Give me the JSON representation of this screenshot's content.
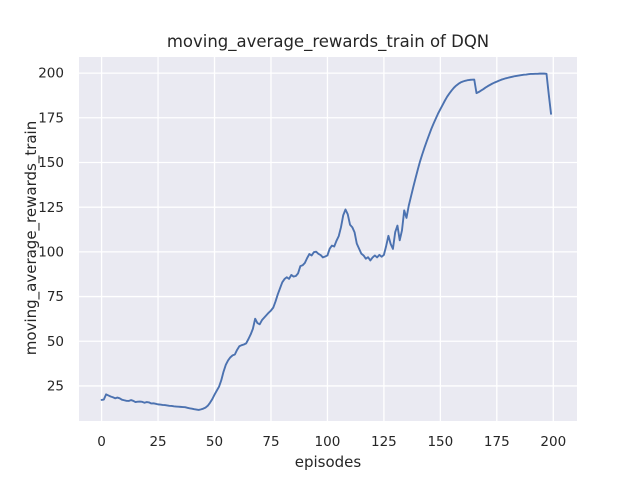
{
  "chart_data": {
    "type": "line",
    "title": "moving_average_rewards_train of DQN",
    "xlabel": "episodes",
    "ylabel": "moving_average_rewards_train",
    "xticks": [
      0,
      25,
      50,
      75,
      100,
      125,
      150,
      175,
      200
    ],
    "yticks": [
      25,
      50,
      75,
      100,
      125,
      150,
      175,
      200
    ],
    "xlim": [
      -10,
      210.5
    ],
    "ylim": [
      5.4,
      209
    ],
    "grid": true,
    "legend": false,
    "colors": {
      "line": "#4C72B0",
      "plot_background": "#EAEAF2",
      "grid": "#FFFFFF",
      "figure_background": "#FFFFFF",
      "text": "#262626"
    },
    "series": [
      {
        "name": "moving_average_rewards_train",
        "points": [
          [
            0,
            17.2
          ],
          [
            1,
            17.4
          ],
          [
            2,
            20.3
          ],
          [
            3,
            19.7
          ],
          [
            4,
            19.1
          ],
          [
            5,
            18.7
          ],
          [
            6,
            18.1
          ],
          [
            7,
            18.5
          ],
          [
            8,
            18.1
          ],
          [
            9,
            17.3
          ],
          [
            10,
            17.0
          ],
          [
            11,
            16.7
          ],
          [
            12,
            16.6
          ],
          [
            13,
            17.1
          ],
          [
            14,
            16.7
          ],
          [
            15,
            16.0
          ],
          [
            16,
            16.2
          ],
          [
            17,
            16.3
          ],
          [
            18,
            16.1
          ],
          [
            19,
            15.6
          ],
          [
            20,
            16.0
          ],
          [
            21,
            15.8
          ],
          [
            22,
            15.2
          ],
          [
            23,
            15.3
          ],
          [
            24,
            15.0
          ],
          [
            25,
            14.7
          ],
          [
            26,
            14.6
          ],
          [
            27,
            14.4
          ],
          [
            28,
            14.3
          ],
          [
            29,
            14.1
          ],
          [
            30,
            13.9
          ],
          [
            31,
            13.8
          ],
          [
            32,
            13.6
          ],
          [
            33,
            13.5
          ],
          [
            34,
            13.4
          ],
          [
            35,
            13.3
          ],
          [
            36,
            13.2
          ],
          [
            37,
            13.1
          ],
          [
            38,
            12.8
          ],
          [
            39,
            12.5
          ],
          [
            40,
            12.3
          ],
          [
            41,
            12.0
          ],
          [
            42,
            11.8
          ],
          [
            43,
            11.6
          ],
          [
            44,
            11.9
          ],
          [
            45,
            12.3
          ],
          [
            46,
            12.9
          ],
          [
            47,
            13.9
          ],
          [
            48,
            15.6
          ],
          [
            49,
            17.6
          ],
          [
            50,
            20.1
          ],
          [
            51,
            22.4
          ],
          [
            52,
            24.6
          ],
          [
            53,
            28.2
          ],
          [
            54,
            33.0
          ],
          [
            55,
            36.8
          ],
          [
            56,
            39.3
          ],
          [
            57,
            41.0
          ],
          [
            58,
            42.1
          ],
          [
            59,
            42.6
          ],
          [
            60,
            45.2
          ],
          [
            61,
            47.2
          ],
          [
            62,
            47.8
          ],
          [
            63,
            48.2
          ],
          [
            64,
            48.8
          ],
          [
            65,
            51.2
          ],
          [
            66,
            53.8
          ],
          [
            67,
            57.0
          ],
          [
            68,
            62.6
          ],
          [
            69,
            60.2
          ],
          [
            70,
            59.5
          ],
          [
            71,
            61.8
          ],
          [
            72,
            63.2
          ],
          [
            73,
            64.6
          ],
          [
            74,
            66.0
          ],
          [
            75,
            67.2
          ],
          [
            76,
            68.8
          ],
          [
            77,
            72.2
          ],
          [
            78,
            76.2
          ],
          [
            79,
            79.6
          ],
          [
            80,
            83.0
          ],
          [
            81,
            84.8
          ],
          [
            82,
            85.8
          ],
          [
            83,
            84.9
          ],
          [
            84,
            87.1
          ],
          [
            85,
            86.2
          ],
          [
            86,
            86.5
          ],
          [
            87,
            88.0
          ],
          [
            88,
            92.0
          ],
          [
            89,
            92.5
          ],
          [
            90,
            93.8
          ],
          [
            91,
            96.5
          ],
          [
            92,
            98.8
          ],
          [
            93,
            98.0
          ],
          [
            94,
            99.8
          ],
          [
            95,
            100.1
          ],
          [
            96,
            98.9
          ],
          [
            97,
            98.2
          ],
          [
            98,
            96.9
          ],
          [
            99,
            97.4
          ],
          [
            100,
            98.0
          ],
          [
            101,
            101.8
          ],
          [
            102,
            103.5
          ],
          [
            103,
            103.0
          ],
          [
            104,
            106.2
          ],
          [
            105,
            108.8
          ],
          [
            106,
            113.8
          ],
          [
            107,
            120.5
          ],
          [
            108,
            123.7
          ],
          [
            109,
            121.0
          ],
          [
            110,
            115.2
          ],
          [
            111,
            113.8
          ],
          [
            112,
            111.0
          ],
          [
            113,
            104.6
          ],
          [
            114,
            101.8
          ],
          [
            115,
            99.0
          ],
          [
            116,
            98.0
          ],
          [
            117,
            96.2
          ],
          [
            118,
            97.0
          ],
          [
            119,
            95.2
          ],
          [
            120,
            96.9
          ],
          [
            121,
            98.0
          ],
          [
            122,
            96.9
          ],
          [
            123,
            98.3
          ],
          [
            124,
            97.3
          ],
          [
            125,
            98.3
          ],
          [
            126,
            103.3
          ],
          [
            127,
            109.0
          ],
          [
            128,
            104.4
          ],
          [
            129,
            101.7
          ],
          [
            130,
            111.0
          ],
          [
            131,
            114.7
          ],
          [
            132,
            106.5
          ],
          [
            133,
            112.0
          ],
          [
            134,
            123.2
          ],
          [
            135,
            119.0
          ],
          [
            136,
            125.8
          ],
          [
            137,
            131.0
          ],
          [
            138,
            136.2
          ],
          [
            139,
            141.2
          ],
          [
            140,
            146.0
          ],
          [
            141,
            150.6
          ],
          [
            142,
            154.6
          ],
          [
            143,
            158.4
          ],
          [
            144,
            162.0
          ],
          [
            145,
            165.4
          ],
          [
            146,
            168.8
          ],
          [
            147,
            171.8
          ],
          [
            148,
            174.6
          ],
          [
            149,
            177.4
          ],
          [
            150,
            179.8
          ],
          [
            151,
            182.2
          ],
          [
            152,
            184.6
          ],
          [
            153,
            186.8
          ],
          [
            154,
            188.6
          ],
          [
            155,
            190.3
          ],
          [
            156,
            191.8
          ],
          [
            157,
            193.0
          ],
          [
            158,
            194.0
          ],
          [
            159,
            194.8
          ],
          [
            160,
            195.3
          ],
          [
            161,
            195.7
          ],
          [
            162,
            196.0
          ],
          [
            163,
            196.2
          ],
          [
            164,
            196.3
          ],
          [
            165,
            196.4
          ],
          [
            166,
            188.8
          ],
          [
            167,
            189.4
          ],
          [
            168,
            190.2
          ],
          [
            169,
            191.0
          ],
          [
            170,
            191.9
          ],
          [
            171,
            192.7
          ],
          [
            172,
            193.4
          ],
          [
            173,
            194.1
          ],
          [
            174,
            194.7
          ],
          [
            175,
            195.2
          ],
          [
            176,
            195.8
          ],
          [
            177,
            196.3
          ],
          [
            178,
            196.7
          ],
          [
            179,
            197.1
          ],
          [
            180,
            197.4
          ],
          [
            181,
            197.7
          ],
          [
            182,
            198.0
          ],
          [
            183,
            198.3
          ],
          [
            184,
            198.5
          ],
          [
            185,
            198.7
          ],
          [
            186,
            198.9
          ],
          [
            187,
            199.1
          ],
          [
            188,
            199.2
          ],
          [
            189,
            199.4
          ],
          [
            190,
            199.5
          ],
          [
            191,
            199.5
          ],
          [
            192,
            199.6
          ],
          [
            193,
            199.6
          ],
          [
            194,
            199.7
          ],
          [
            195,
            199.7
          ],
          [
            196,
            199.7
          ],
          [
            197,
            199.6
          ],
          [
            198,
            188.0
          ],
          [
            199,
            177.2
          ]
        ]
      }
    ]
  }
}
